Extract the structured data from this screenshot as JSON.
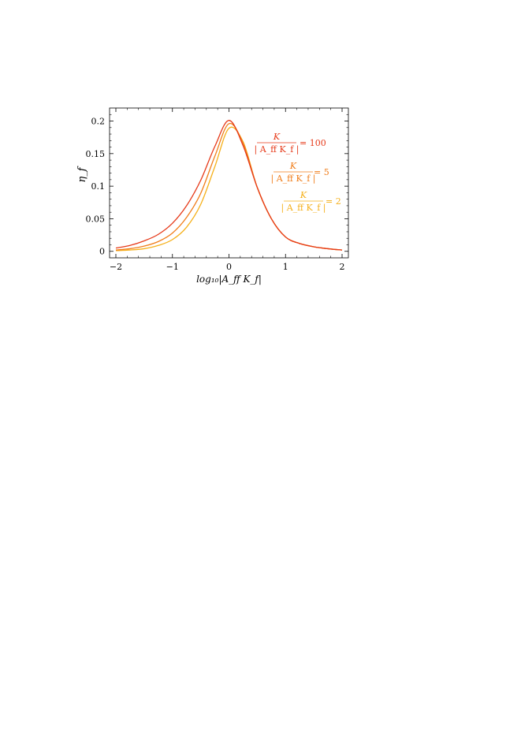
{
  "chart_data": {
    "type": "line",
    "title": "",
    "xlabel": "log₁₀|A_ff K_f|",
    "ylabel": "η_f",
    "xlim": [
      -2,
      2
    ],
    "ylim": [
      -0.01,
      0.22
    ],
    "x_ticks": [
      -2,
      -1,
      0,
      1,
      2
    ],
    "x_tick_labels": [
      "−2",
      "−1",
      "0",
      "1",
      "2"
    ],
    "y_ticks": [
      0,
      0.05,
      0.1,
      0.15,
      0.2
    ],
    "y_tick_labels": [
      "0",
      "0.05",
      "0.1",
      "0.15",
      "0.2"
    ],
    "grid": false,
    "legend_placement": "inside-right",
    "series": [
      {
        "label": "K / |A_ff K_f| = 100",
        "label_numerator": "K",
        "label_denominator": "| A_ff K_f |",
        "label_value": "= 100",
        "color": "#e63a1a",
        "x": [
          -2,
          -1.75,
          -1.5,
          -1.25,
          -1,
          -0.75,
          -0.5,
          -0.25,
          0,
          0.25,
          0.5,
          0.75,
          1,
          1.25,
          1.5,
          1.75,
          2
        ],
        "y": [
          0.005,
          0.009,
          0.016,
          0.026,
          0.043,
          0.07,
          0.109,
          0.161,
          0.201,
          0.162,
          0.098,
          0.05,
          0.022,
          0.012,
          0.007,
          0.004,
          0.002
        ]
      },
      {
        "label": "K / |A_ff K_f| = 5",
        "label_numerator": "K",
        "label_denominator": "| A_ff K_f |",
        "label_value": "= 5",
        "color": "#f07d1a",
        "x": [
          -2,
          -1.75,
          -1.5,
          -1.25,
          -1,
          -0.75,
          -0.5,
          -0.25,
          0,
          0.25,
          0.5,
          0.75,
          1,
          1.25,
          1.5,
          1.75,
          2
        ],
        "y": [
          0.002,
          0.004,
          0.008,
          0.015,
          0.028,
          0.052,
          0.089,
          0.146,
          0.196,
          0.166,
          0.098,
          0.05,
          0.022,
          0.012,
          0.007,
          0.004,
          0.002
        ]
      },
      {
        "label": "K / |A_ff K_f| = 2",
        "label_numerator": "K",
        "label_denominator": "| A_ff K_f |",
        "label_value": "= 2",
        "color": "#f5b01a",
        "x": [
          -2,
          -1.75,
          -1.5,
          -1.25,
          -1,
          -0.75,
          -0.5,
          -0.25,
          0,
          0.25,
          0.5,
          0.75,
          1,
          1.25,
          1.5,
          1.75,
          2
        ],
        "y": [
          0.001,
          0.002,
          0.004,
          0.009,
          0.018,
          0.037,
          0.072,
          0.13,
          0.189,
          0.168,
          0.098,
          0.05,
          0.022,
          0.012,
          0.007,
          0.004,
          0.002
        ]
      }
    ]
  }
}
